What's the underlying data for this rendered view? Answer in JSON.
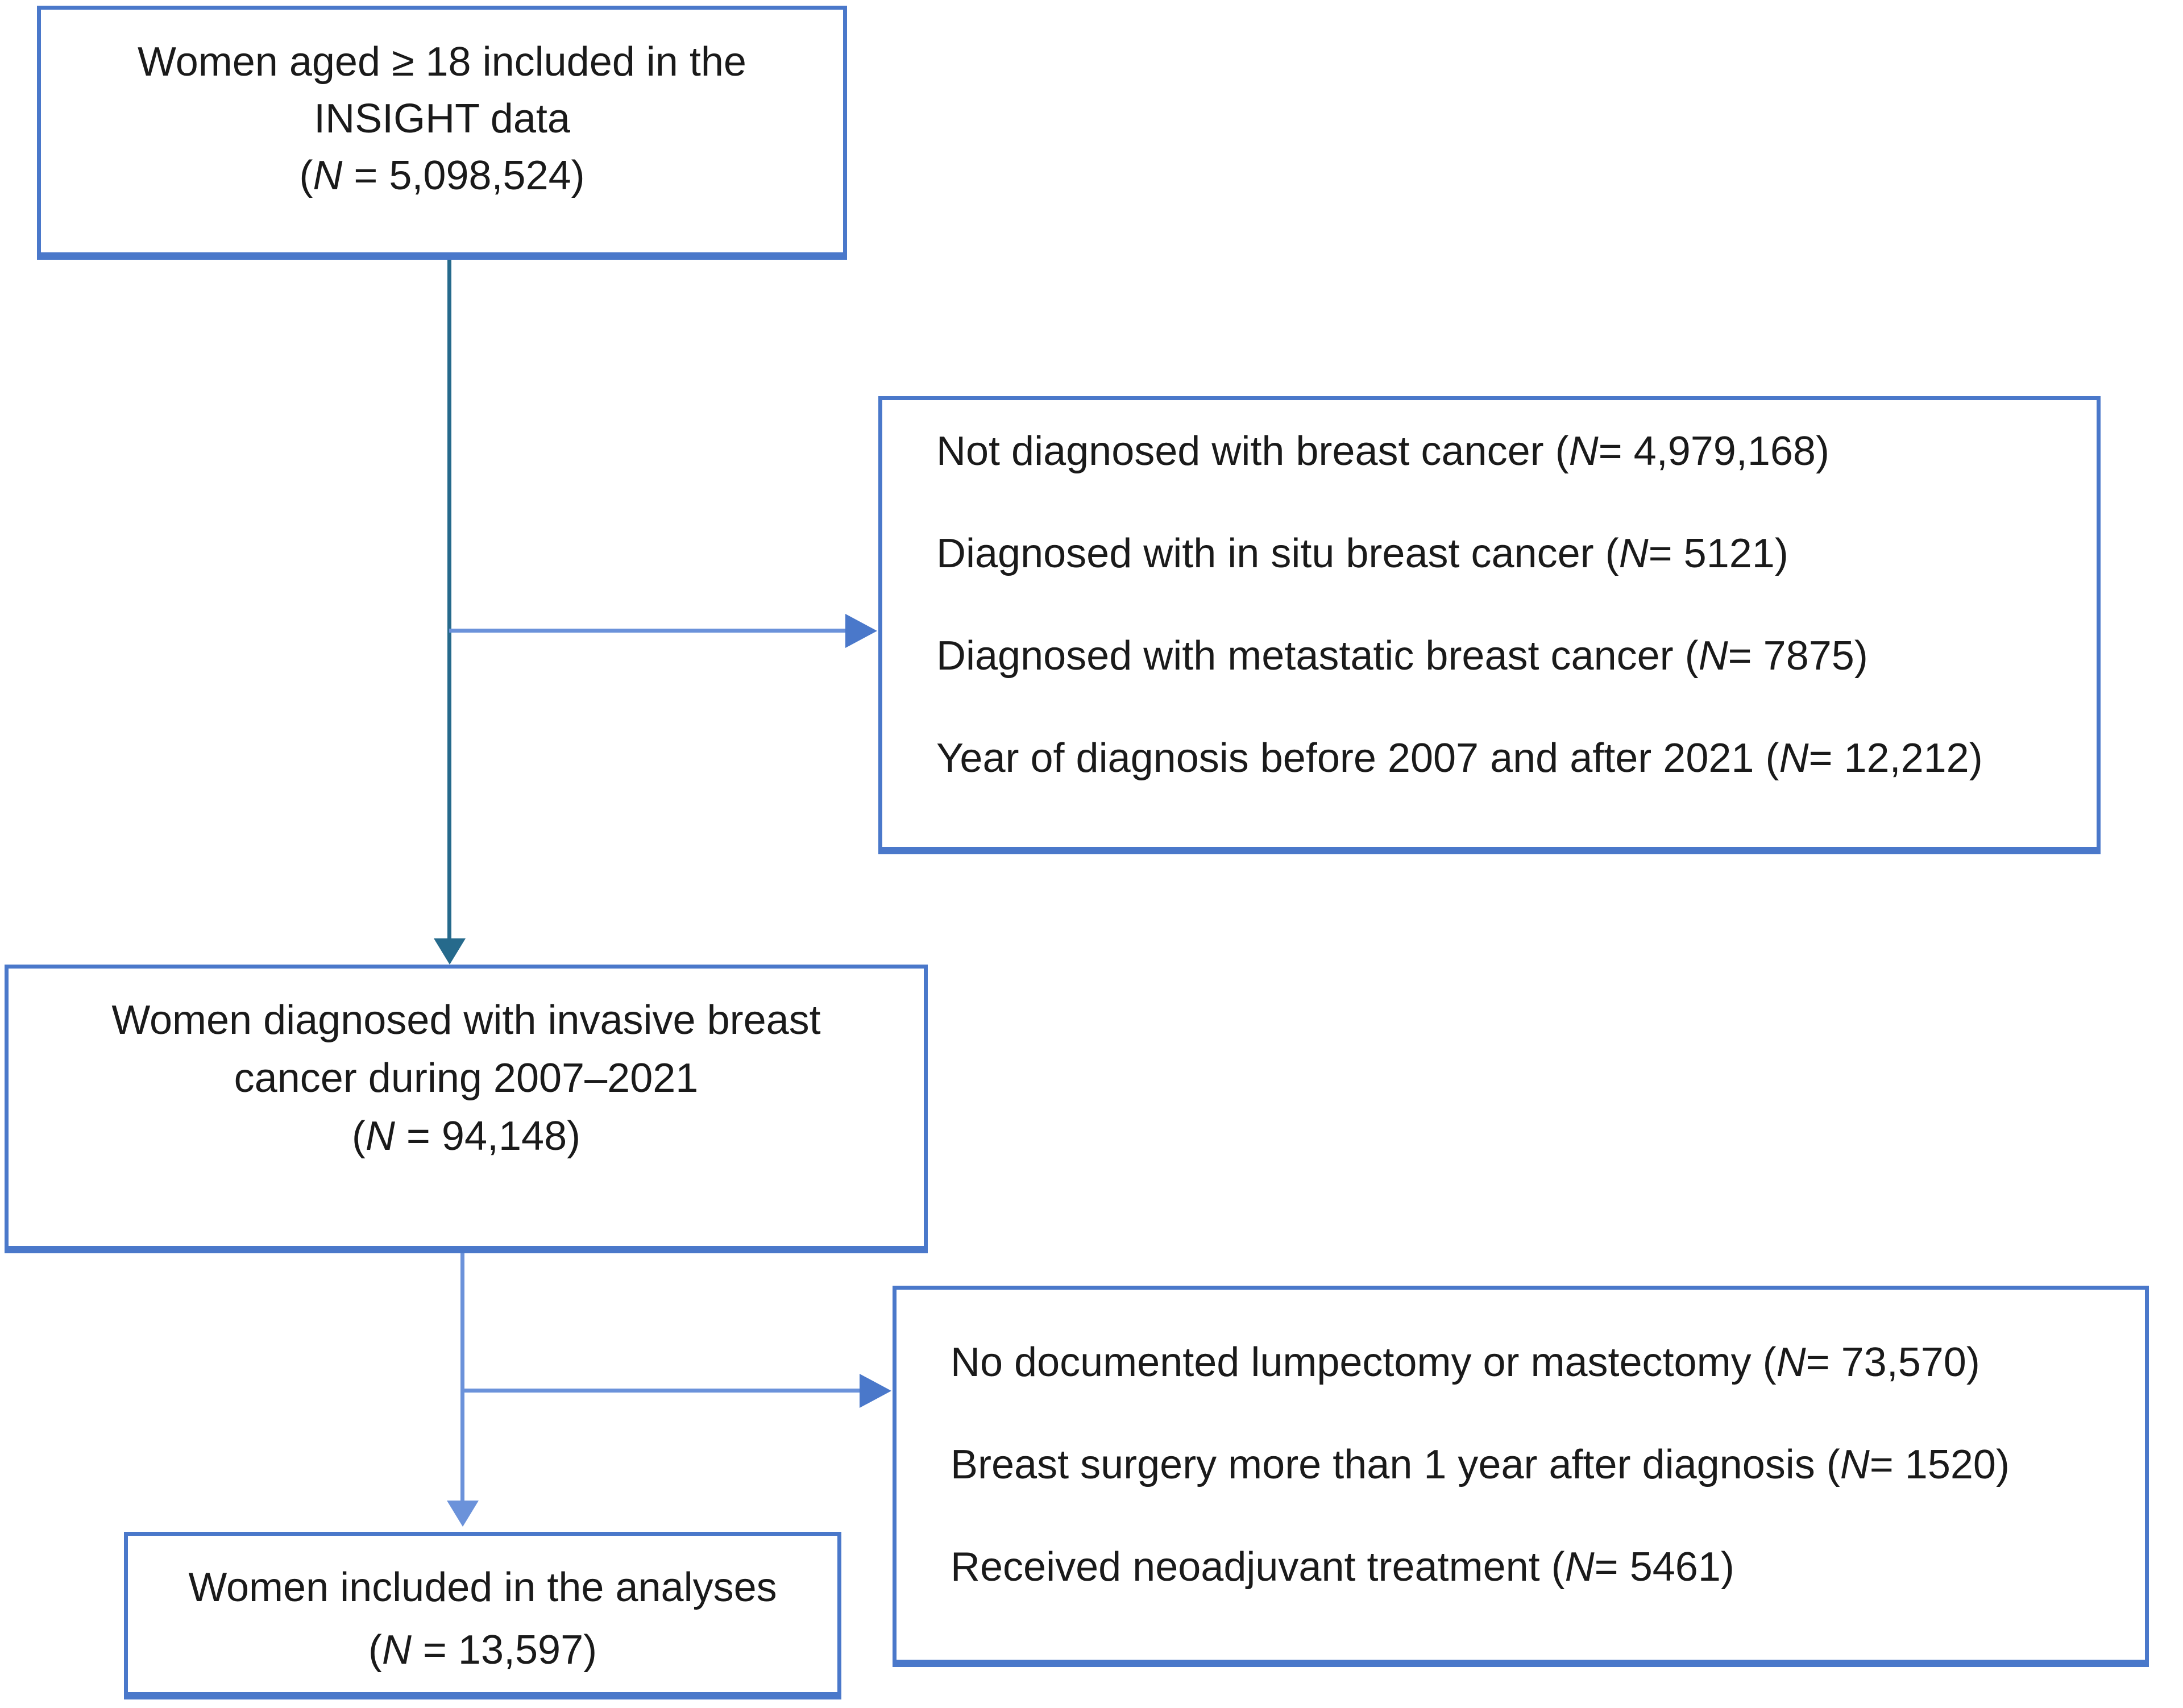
{
  "colors": {
    "box_border": "#4a78ca",
    "line_light": "#6b92da",
    "line_dark": "#266a8c",
    "arrow_blue": "#4a78ca",
    "text": "#1a1a1a",
    "background": "#ffffff"
  },
  "flow": {
    "top_box": {
      "line1": "Women aged ≥ 18 included in the",
      "line2": "INSIGHT data",
      "n_pre": "(",
      "n_sym": "N",
      "n_post": " = 5,098,524)"
    },
    "exclusions_first": {
      "items": [
        {
          "pre": "Not diagnosed with breast cancer (",
          "n": "N",
          "post": " = 4,979,168)"
        },
        {
          "pre": "Diagnosed with in situ breast cancer (",
          "n": "N",
          "post": " = 5121)"
        },
        {
          "pre": "Diagnosed with metastatic breast cancer (",
          "n": "N",
          "post": " = 7875)"
        },
        {
          "pre": "Year of diagnosis before 2007 and after 2021 (",
          "n": "N",
          "post": " = 12,212)"
        }
      ]
    },
    "middle_box": {
      "line1": "Women diagnosed with invasive breast",
      "line2": "cancer during 2007–2021",
      "n_pre": "(",
      "n_sym": "N",
      "n_post": " = 94,148)"
    },
    "exclusions_second": {
      "items": [
        {
          "pre": "No documented lumpectomy or mastectomy (",
          "n": "N",
          "post": " = 73,570)"
        },
        {
          "pre": "Breast surgery more than 1 year after diagnosis (",
          "n": "N",
          "post": " = 1520)"
        },
        {
          "pre": "Received neoadjuvant treatment (",
          "n": "N",
          "post": " = 5461)"
        }
      ]
    },
    "bottom_box": {
      "line1": "Women included in the analyses",
      "n_pre": "(",
      "n_sym": "N",
      "n_post": " = 13,597)"
    }
  }
}
